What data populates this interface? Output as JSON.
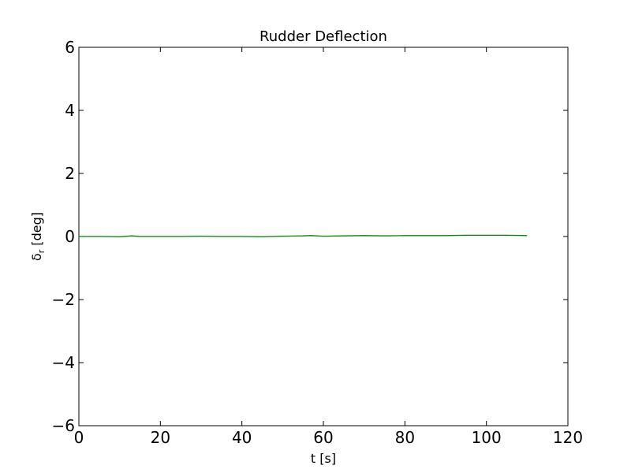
{
  "chart_data": {
    "type": "line",
    "title": "Rudder Deflection",
    "xlabel": "t [s]",
    "ylabel": "δr [deg]",
    "ylabel_symbol": "δ",
    "ylabel_subscript": "r",
    "ylabel_unit": " [deg]",
    "xlim": [
      0,
      120
    ],
    "ylim": [
      -6,
      6
    ],
    "xticks": [
      0,
      20,
      40,
      60,
      80,
      100,
      120
    ],
    "yticks": [
      -6,
      -4,
      -2,
      0,
      2,
      4,
      6
    ],
    "xtick_labels": [
      "0",
      "20",
      "40",
      "60",
      "80",
      "100",
      "120"
    ],
    "ytick_labels": [
      "−6",
      "−4",
      "−2",
      "0",
      "2",
      "4",
      "6"
    ],
    "grid": false,
    "series": [
      {
        "color": "#008000",
        "x": [
          0,
          5,
          10,
          13,
          15,
          20,
          25,
          30,
          35,
          40,
          45,
          50,
          55,
          57,
          60,
          65,
          70,
          75,
          80,
          85,
          90,
          95,
          100,
          105,
          110
        ],
        "y": [
          0.0,
          0.0,
          -0.01,
          0.02,
          0.0,
          0.0,
          0.0,
          0.01,
          0.0,
          0.0,
          -0.01,
          0.01,
          0.02,
          0.03,
          0.01,
          0.02,
          0.03,
          0.02,
          0.03,
          0.03,
          0.03,
          0.04,
          0.04,
          0.04,
          0.03
        ]
      }
    ]
  }
}
